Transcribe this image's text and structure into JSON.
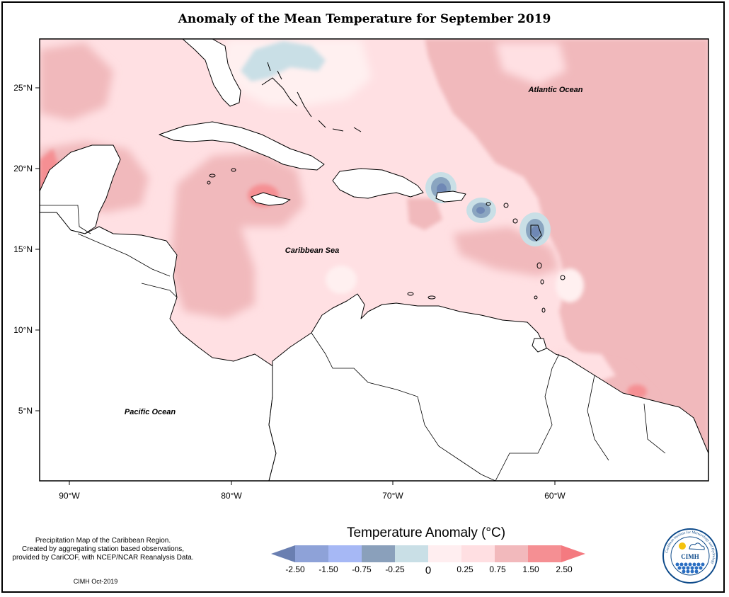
{
  "title": "Anomaly of the Mean Temperature for September 2019",
  "map": {
    "axes": {
      "x_ticks": [
        "90°W",
        "80°W",
        "70°W",
        "60°W"
      ],
      "y_ticks": [
        "25°N",
        "20°N",
        "15°N",
        "10°N",
        "5°N"
      ]
    },
    "labels": {
      "atlantic": "Atlantic Ocean",
      "caribbean": "Caribbean Sea",
      "pacific": "Pacific Ocean"
    },
    "colors": {
      "ocean_base": "#ffe0e3",
      "band_0_75_1_50": "#f1b9bc",
      "band_1_50_2_50": "#f58f93",
      "band_0_0_25": "#fff0f0",
      "band_neg_0_25_0": "#c9dfe6",
      "band_neg_0_75_neg_0_25": "#8aa5c0",
      "band_neg_1_50_neg_0_75": "#7690b8",
      "land": "#ffffff"
    }
  },
  "notes": {
    "line1": "Precipitation Map of the Caribbean Region.",
    "line2": "Created by aggregating station based observations,",
    "line3": "provided by CariCOF, with NCEP/NCAR Reanalysis Data.",
    "credit": "CIMH Oct-2019"
  },
  "legend": {
    "title": "Temperature Anomaly (°C)",
    "ticks": [
      "-2.50",
      "-1.50",
      "-0.75",
      "-0.25",
      "0",
      "0.25",
      "0.75",
      "1.50",
      "2.50"
    ],
    "colors": [
      "#6a7fb1",
      "#8ea2d8",
      "#a6b8f5",
      "#8aa0bb",
      "#c9dfe6",
      "#ffeef0",
      "#ffdfe2",
      "#f2b9bc",
      "#f58f93",
      "#f47a80"
    ]
  },
  "logo": {
    "name": "CIMH",
    "ring_text": "Caribbean Institute for Meteorology and Hydrology"
  }
}
